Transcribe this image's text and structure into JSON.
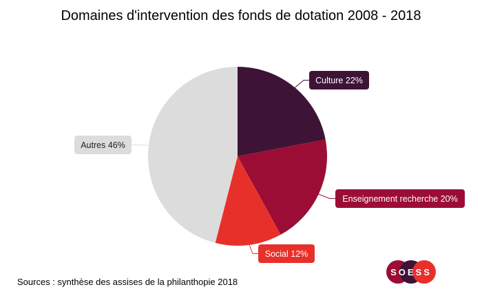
{
  "chart_data": {
    "type": "pie",
    "title": "Domaines d'intervention des fonds de dotation 2008 - 2018",
    "slices": [
      {
        "label": "Culture 22%",
        "category": "Culture",
        "value": 22,
        "color": "#3d1436",
        "text_color": "#ffffff"
      },
      {
        "label": "Enseignement recherche 20%",
        "category": "Enseignement recherche",
        "value": 20,
        "color": "#9b0d35",
        "text_color": "#ffffff"
      },
      {
        "label": "Social 12%",
        "category": "Social",
        "value": 12,
        "color": "#e8302a",
        "text_color": "#ffffff"
      },
      {
        "label": "Autres 46%",
        "category": "Autres",
        "value": 46,
        "color": "#dcdcdc",
        "text_color": "#222222"
      }
    ],
    "start": "top",
    "direction": "clockwise"
  },
  "source": "Sources : synthèse des assises de la philanthopie 2018",
  "logo": {
    "text": "SOESS",
    "colors": [
      "#9b0d35",
      "#3d1436",
      "#e8302a"
    ]
  }
}
